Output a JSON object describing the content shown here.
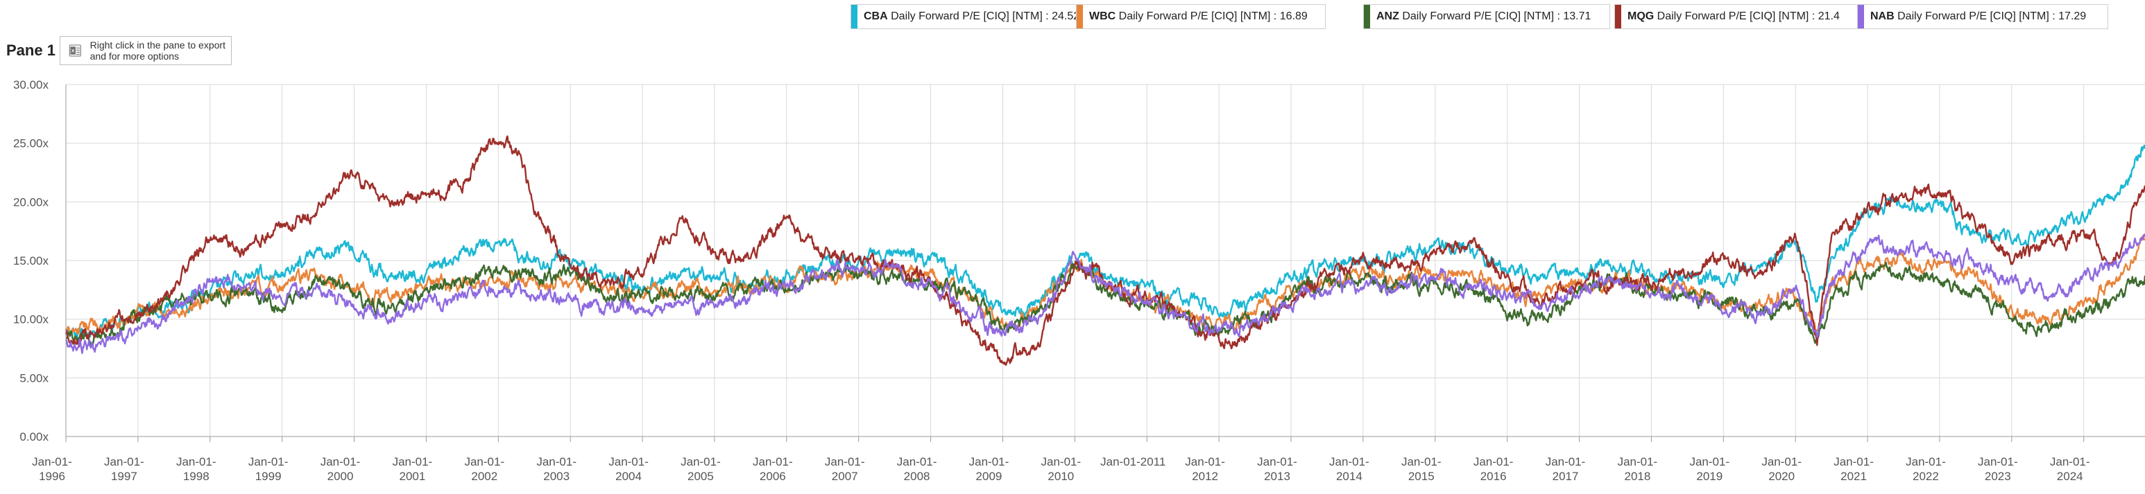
{
  "pane": {
    "title": "Pane 1",
    "export_hint": "Right click in the pane to export and for more options"
  },
  "legend": [
    {
      "ticker": "CBA",
      "text": " Daily Forward P/E [CIQ] [NTM] : 24.52",
      "color": "#1cb8d4"
    },
    {
      "ticker": "WBC",
      "text": " Daily Forward P/E [CIQ] [NTM] : 16.89",
      "color": "#e8843a"
    },
    {
      "ticker": "ANZ",
      "text": " Daily Forward P/E [CIQ] [NTM] : 13.71",
      "color": "#3d6b2e"
    },
    {
      "ticker": "MQG",
      "text": " Daily Forward P/E [CIQ] [NTM] : 21.4",
      "color": "#9e2f2a"
    },
    {
      "ticker": "NAB",
      "text": " Daily Forward P/E [CIQ] [NTM] : 17.29",
      "color": "#8f6ae0"
    }
  ],
  "chart_data": {
    "type": "line",
    "title": "",
    "xlabel": "",
    "ylabel": "",
    "xlim": [
      1996.0,
      2024.85
    ],
    "ylim": [
      0,
      30
    ],
    "y_ticks": [
      0,
      5,
      10,
      15,
      20,
      25,
      30
    ],
    "y_tick_labels": [
      "0.00x",
      "5.00x",
      "10.00x",
      "15.00x",
      "20.00x",
      "25.00x",
      "30.00x"
    ],
    "x_tick_labels": [
      [
        "Jan-01-",
        "1996"
      ],
      [
        "Jan-01-",
        "1997"
      ],
      [
        "Jan-01-",
        "1998"
      ],
      [
        "Jan-01-",
        "1999"
      ],
      [
        "Jan-01-",
        "2000"
      ],
      [
        "Jan-01-",
        "2001"
      ],
      [
        "Jan-01-",
        "2002"
      ],
      [
        "Jan-01-",
        "2003"
      ],
      [
        "Jan-01-",
        "2004"
      ],
      [
        "Jan-01-",
        "2005"
      ],
      [
        "Jan-01-",
        "2006"
      ],
      [
        "Jan-01-",
        "2007"
      ],
      [
        "Jan-01-",
        "2008"
      ],
      [
        "Jan-01-",
        "2009"
      ],
      [
        "Jan-01-",
        "2010"
      ],
      [
        "Jan-01-2011",
        ""
      ],
      [
        "Jan-01-",
        "2012"
      ],
      [
        "Jan-01-",
        "2013"
      ],
      [
        "Jan-01-",
        "2014"
      ],
      [
        "Jan-01-",
        "2015"
      ],
      [
        "Jan-01-",
        "2016"
      ],
      [
        "Jan-01-",
        "2017"
      ],
      [
        "Jan-01-",
        "2018"
      ],
      [
        "Jan-01-",
        "2019"
      ],
      [
        "Jan-01-",
        "2020"
      ],
      [
        "Jan-01-",
        "2021"
      ],
      [
        "Jan-01-",
        "2022"
      ],
      [
        "Jan-01-",
        "2023"
      ],
      [
        "Jan-01-",
        "2024"
      ]
    ],
    "grid": true,
    "legend_position": "top",
    "series": [
      {
        "name": "CBA Daily Forward P/E [CIQ] [NTM]",
        "color": "#1cb8d4",
        "x": [
          1996.0,
          1996.5,
          1997.0,
          1997.5,
          1998.0,
          1998.5,
          1999.0,
          1999.5,
          2000.0,
          2000.5,
          2001.0,
          2001.5,
          2002.0,
          2002.5,
          2003.0,
          2003.5,
          2004.0,
          2004.5,
          2005.0,
          2005.5,
          2006.0,
          2006.5,
          2007.0,
          2007.5,
          2008.0,
          2008.5,
          2009.0,
          2009.5,
          2010.0,
          2010.5,
          2011.0,
          2011.5,
          2012.0,
          2012.5,
          2013.0,
          2013.5,
          2014.0,
          2014.5,
          2015.0,
          2015.5,
          2016.0,
          2016.5,
          2017.0,
          2017.5,
          2018.0,
          2018.5,
          2019.0,
          2019.5,
          2020.0,
          2020.3,
          2020.5,
          2021.0,
          2021.5,
          2022.0,
          2022.5,
          2023.0,
          2023.5,
          2024.0,
          2024.5,
          2024.85
        ],
        "y": [
          8.5,
          9.2,
          10.5,
          11.2,
          12.5,
          13.5,
          13.8,
          15.5,
          16.0,
          13.5,
          14.0,
          15.8,
          16.5,
          15.0,
          14.8,
          13.5,
          12.8,
          13.8,
          13.5,
          13.2,
          13.8,
          14.8,
          15.0,
          15.2,
          15.2,
          13.5,
          10.5,
          11.5,
          15.5,
          13.5,
          12.8,
          11.5,
          10.8,
          11.5,
          13.8,
          14.5,
          15.0,
          15.5,
          16.5,
          15.5,
          14.5,
          13.5,
          14.0,
          14.5,
          13.5,
          13.8,
          13.2,
          14.5,
          16.5,
          11.5,
          15.0,
          19.0,
          20.0,
          19.5,
          17.0,
          16.8,
          17.5,
          18.5,
          21.0,
          24.52
        ]
      },
      {
        "name": "WBC Daily Forward P/E [CIQ] [NTM]",
        "color": "#e8843a",
        "x": [
          1996.0,
          1996.5,
          1997.0,
          1997.5,
          1998.0,
          1998.5,
          1999.0,
          1999.5,
          2000.0,
          2000.5,
          2001.0,
          2001.5,
          2002.0,
          2002.5,
          2003.0,
          2003.5,
          2004.0,
          2004.5,
          2005.0,
          2005.5,
          2006.0,
          2006.5,
          2007.0,
          2007.5,
          2008.0,
          2008.5,
          2009.0,
          2009.5,
          2010.0,
          2010.5,
          2011.0,
          2011.5,
          2012.0,
          2012.5,
          2013.0,
          2013.5,
          2014.0,
          2014.5,
          2015.0,
          2015.5,
          2016.0,
          2016.5,
          2017.0,
          2017.5,
          2018.0,
          2018.5,
          2019.0,
          2019.5,
          2020.0,
          2020.3,
          2020.5,
          2021.0,
          2021.5,
          2022.0,
          2022.5,
          2023.0,
          2023.5,
          2024.0,
          2024.5,
          2024.85
        ],
        "y": [
          9.0,
          9.5,
          10.5,
          11.0,
          12.0,
          12.5,
          13.0,
          13.5,
          12.5,
          12.0,
          12.8,
          13.0,
          13.5,
          13.2,
          13.0,
          12.5,
          12.0,
          12.8,
          12.5,
          12.8,
          13.0,
          13.5,
          14.0,
          14.2,
          13.5,
          12.0,
          9.5,
          10.8,
          15.0,
          12.5,
          11.8,
          10.5,
          9.5,
          10.5,
          12.5,
          13.0,
          13.8,
          13.5,
          14.0,
          13.8,
          12.5,
          12.0,
          12.8,
          13.5,
          12.5,
          12.5,
          11.5,
          11.0,
          12.5,
          9.0,
          13.0,
          14.5,
          15.0,
          14.8,
          13.5,
          10.5,
          10.0,
          11.5,
          13.5,
          16.89
        ]
      },
      {
        "name": "ANZ Daily Forward P/E [CIQ] [NTM]",
        "color": "#3d6b2e",
        "x": [
          1996.0,
          1996.5,
          1997.0,
          1997.5,
          1998.0,
          1998.5,
          1999.0,
          1999.5,
          2000.0,
          2000.5,
          2001.0,
          2001.5,
          2002.0,
          2002.5,
          2003.0,
          2003.5,
          2004.0,
          2004.5,
          2005.0,
          2005.5,
          2006.0,
          2006.5,
          2007.0,
          2007.5,
          2008.0,
          2008.5,
          2009.0,
          2009.5,
          2010.0,
          2010.5,
          2011.0,
          2011.5,
          2012.0,
          2012.5,
          2013.0,
          2013.5,
          2014.0,
          2014.5,
          2015.0,
          2015.5,
          2016.0,
          2016.5,
          2017.0,
          2017.5,
          2018.0,
          2018.5,
          2019.0,
          2019.5,
          2020.0,
          2020.3,
          2020.5,
          2021.0,
          2021.5,
          2022.0,
          2022.5,
          2023.0,
          2023.5,
          2024.0,
          2024.5,
          2024.85
        ],
        "y": [
          8.2,
          8.5,
          10.5,
          11.5,
          12.0,
          12.5,
          11.0,
          13.5,
          12.0,
          11.0,
          12.5,
          13.0,
          13.8,
          13.5,
          14.0,
          12.0,
          11.8,
          12.5,
          12.2,
          12.5,
          12.8,
          13.5,
          13.8,
          13.5,
          13.2,
          12.0,
          9.0,
          10.5,
          14.5,
          12.0,
          11.5,
          10.2,
          9.2,
          9.8,
          12.0,
          12.8,
          13.5,
          13.2,
          13.0,
          12.5,
          10.5,
          10.0,
          12.5,
          13.2,
          12.5,
          12.0,
          11.2,
          10.5,
          11.5,
          7.8,
          12.0,
          13.5,
          13.8,
          13.5,
          12.5,
          10.0,
          9.5,
          10.5,
          12.0,
          13.71
        ]
      },
      {
        "name": "MQG Daily Forward P/E [CIQ] [NTM]",
        "color": "#9e2f2a",
        "x": [
          1996.0,
          1996.5,
          1997.0,
          1997.5,
          1998.0,
          1998.5,
          1999.0,
          1999.5,
          2000.0,
          2000.5,
          2001.0,
          2001.5,
          2002.0,
          2002.3,
          2002.5,
          2003.0,
          2003.5,
          2004.0,
          2004.5,
          2005.0,
          2005.5,
          2006.0,
          2006.5,
          2007.0,
          2007.5,
          2008.0,
          2008.5,
          2009.0,
          2009.5,
          2010.0,
          2010.5,
          2011.0,
          2011.5,
          2012.0,
          2012.5,
          2013.0,
          2013.5,
          2014.0,
          2014.5,
          2015.0,
          2015.5,
          2016.0,
          2016.5,
          2017.0,
          2017.5,
          2018.0,
          2018.5,
          2019.0,
          2019.5,
          2020.0,
          2020.3,
          2020.5,
          2021.0,
          2021.5,
          2022.0,
          2022.5,
          2023.0,
          2023.5,
          2024.0,
          2024.5,
          2024.85
        ],
        "y": [
          8.5,
          9.0,
          10.5,
          12.5,
          17.0,
          16.0,
          18.0,
          19.5,
          22.5,
          20.0,
          20.5,
          21.5,
          25.5,
          24.0,
          19.0,
          14.5,
          13.0,
          14.0,
          18.5,
          15.5,
          15.0,
          19.0,
          15.5,
          15.2,
          14.5,
          13.5,
          9.5,
          6.5,
          8.0,
          15.0,
          13.0,
          12.0,
          10.5,
          8.0,
          9.0,
          11.5,
          14.0,
          15.0,
          14.5,
          15.0,
          16.5,
          13.5,
          11.5,
          13.0,
          13.5,
          13.2,
          14.0,
          15.5,
          13.5,
          17.5,
          8.0,
          17.0,
          19.5,
          20.5,
          21.0,
          18.0,
          15.0,
          16.5,
          17.0,
          15.5,
          21.4
        ]
      },
      {
        "name": "NAB Daily Forward P/E [CIQ] [NTM]",
        "color": "#8f6ae0",
        "x": [
          1996.0,
          1996.5,
          1997.0,
          1997.5,
          1998.0,
          1998.5,
          1999.0,
          1999.5,
          2000.0,
          2000.5,
          2001.0,
          2001.5,
          2002.0,
          2002.5,
          2003.0,
          2003.5,
          2004.0,
          2004.5,
          2005.0,
          2005.5,
          2006.0,
          2006.5,
          2007.0,
          2007.5,
          2008.0,
          2008.5,
          2009.0,
          2009.5,
          2010.0,
          2010.5,
          2011.0,
          2011.5,
          2012.0,
          2012.5,
          2013.0,
          2013.5,
          2014.0,
          2014.5,
          2015.0,
          2015.5,
          2016.0,
          2016.5,
          2017.0,
          2017.5,
          2018.0,
          2018.5,
          2019.0,
          2019.5,
          2020.0,
          2020.3,
          2020.5,
          2021.0,
          2021.5,
          2022.0,
          2022.5,
          2023.0,
          2023.5,
          2024.0,
          2024.5,
          2024.85
        ],
        "y": [
          8.0,
          7.8,
          9.5,
          10.5,
          13.5,
          12.5,
          12.0,
          12.5,
          11.0,
          10.5,
          11.5,
          12.0,
          12.5,
          12.0,
          11.8,
          11.0,
          10.8,
          11.5,
          11.2,
          11.8,
          12.8,
          14.0,
          14.5,
          14.0,
          13.0,
          10.5,
          8.5,
          10.0,
          15.5,
          12.8,
          11.5,
          10.0,
          8.8,
          9.5,
          11.5,
          12.5,
          13.0,
          12.8,
          13.5,
          13.0,
          12.0,
          11.0,
          12.5,
          13.5,
          12.5,
          12.2,
          11.0,
          10.5,
          12.5,
          8.5,
          13.0,
          16.5,
          16.0,
          15.5,
          15.0,
          13.0,
          12.0,
          13.5,
          15.0,
          17.29
        ]
      }
    ]
  }
}
